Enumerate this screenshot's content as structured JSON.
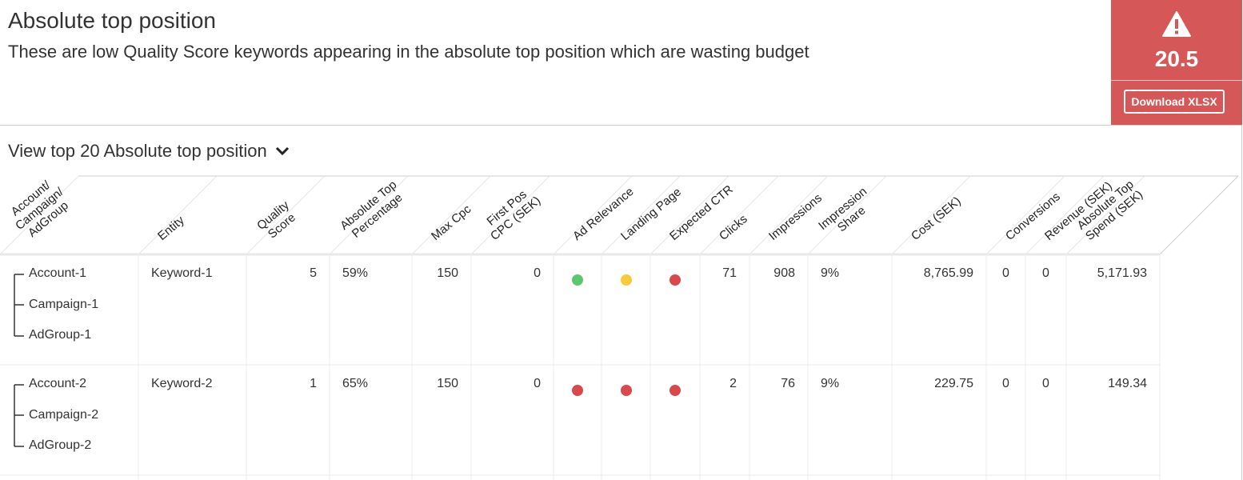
{
  "header": {
    "title": "Absolute top position",
    "subtitle": "These are low Quality Score keywords appearing in the absolute top position which are wasting budget"
  },
  "badge": {
    "icon": "warning-icon",
    "score": "20.5",
    "download_label": "Download XLSX",
    "color": "#d55757"
  },
  "view_top": {
    "label": "View top 20 Absolute top position",
    "icon": "chevron-down-icon"
  },
  "colors": {
    "green": "#5cc86b",
    "yellow": "#f5cb3b",
    "red": "#d9484b"
  },
  "columns": [
    [
      "Account/",
      "Campaign/",
      "AdGroup"
    ],
    [
      "Entity"
    ],
    [
      "Quality",
      "Score"
    ],
    [
      "Absolute Top",
      "Percentage"
    ],
    [
      "Max Cpc"
    ],
    [
      "First Pos",
      "CPC (SEK)"
    ],
    [
      "Ad Relevance"
    ],
    [
      "Landing Page"
    ],
    [
      "Expected CTR"
    ],
    [
      "Clicks"
    ],
    [
      "Impressions"
    ],
    [
      "Impression",
      "Share"
    ],
    [
      "Cost (SEK)"
    ],
    [
      "Conversions"
    ],
    [
      "Revenue (SEK)"
    ],
    [
      "Absolute Top",
      "Spend (SEK)"
    ]
  ],
  "rows": [
    {
      "account": "Account-1",
      "campaign": "Campaign-1",
      "adgroup": "AdGroup-1",
      "entity": "Keyword-1",
      "quality_score": "5",
      "abs_top_pct": "59%",
      "max_cpc": "150",
      "first_pos_cpc": "0",
      "ad_relevance": "green",
      "landing_page": "yellow",
      "expected_ctr": "red",
      "clicks": "71",
      "impressions": "908",
      "impression_share": "9%",
      "cost": "8,765.99",
      "conversions": "0",
      "revenue": "0",
      "abs_top_spend": "5,171.93"
    },
    {
      "account": "Account-2",
      "campaign": "Campaign-2",
      "adgroup": "AdGroup-2",
      "entity": "Keyword-2",
      "quality_score": "1",
      "abs_top_pct": "65%",
      "max_cpc": "150",
      "first_pos_cpc": "0",
      "ad_relevance": "red",
      "landing_page": "red",
      "expected_ctr": "red",
      "clicks": "2",
      "impressions": "76",
      "impression_share": "9%",
      "cost": "229.75",
      "conversions": "0",
      "revenue": "0",
      "abs_top_spend": "149.34"
    }
  ]
}
